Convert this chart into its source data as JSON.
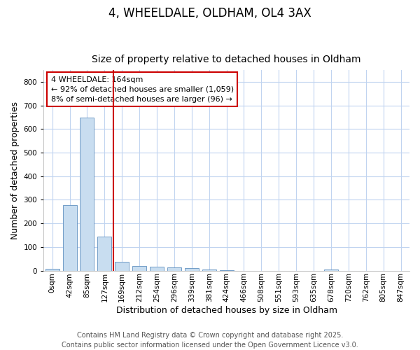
{
  "title1": "4, WHEELDALE, OLDHAM, OL4 3AX",
  "title2": "Size of property relative to detached houses in Oldham",
  "xlabel": "Distribution of detached houses by size in Oldham",
  "ylabel": "Number of detached properties",
  "categories": [
    "0sqm",
    "42sqm",
    "85sqm",
    "127sqm",
    "169sqm",
    "212sqm",
    "254sqm",
    "296sqm",
    "339sqm",
    "381sqm",
    "424sqm",
    "466sqm",
    "508sqm",
    "551sqm",
    "593sqm",
    "635sqm",
    "678sqm",
    "720sqm",
    "762sqm",
    "805sqm",
    "847sqm"
  ],
  "values": [
    8,
    278,
    650,
    143,
    37,
    20,
    17,
    12,
    10,
    5,
    3,
    0,
    0,
    0,
    0,
    0,
    5,
    0,
    0,
    0,
    0
  ],
  "bar_color": "#c8ddf0",
  "bar_edge_color": "#6090c0",
  "vline_x_index": 4,
  "vline_color": "#cc0000",
  "annotation_text": "4 WHEELDALE: 164sqm\n← 92% of detached houses are smaller (1,059)\n8% of semi-detached houses are larger (96) →",
  "annotation_box_color": "#ffffff",
  "annotation_box_edge_color": "#cc0000",
  "ylim": [
    0,
    850
  ],
  "yticks": [
    0,
    100,
    200,
    300,
    400,
    500,
    600,
    700,
    800
  ],
  "fig_bg_color": "#ffffff",
  "plot_bg_color": "#ffffff",
  "grid_color": "#c0d4f0",
  "footer_text": "Contains HM Land Registry data © Crown copyright and database right 2025.\nContains public sector information licensed under the Open Government Licence v3.0.",
  "title_fontsize": 12,
  "subtitle_fontsize": 10,
  "tick_fontsize": 7.5,
  "label_fontsize": 9,
  "annotation_fontsize": 8,
  "footer_fontsize": 7
}
